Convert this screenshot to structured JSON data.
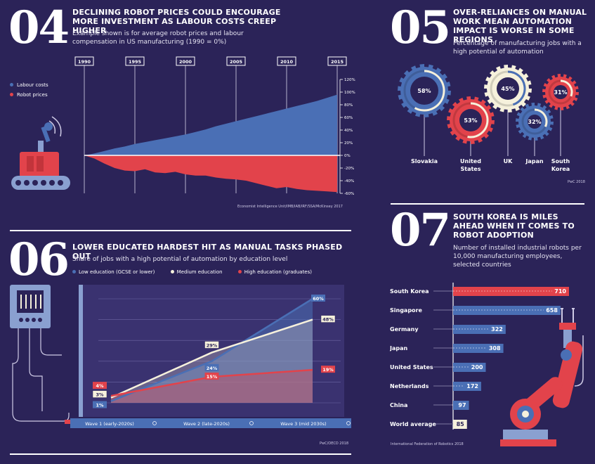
{
  "sections": {
    "s04": {
      "number": "04",
      "title": "DECLINING ROBOT PRICES COULD ENCOURAGE MORE INVESTMENT AS LABOUR COSTS CREEP HIGHER",
      "subtitle": "Example shown is for average robot prices and labour compensation in US manufacturing (1990 = 0%)",
      "source": "Economist Intelligence Unit/IMB/IAB/IRF/SSA/McKinsey 2017",
      "legend": [
        "Labour costs",
        "Robot prices"
      ]
    },
    "s05": {
      "number": "05",
      "title": "OVER-RELIANCES ON MANUAL WORK MEAN AUTOMATION IMPACT IS WORSE IN SOME REGIONS",
      "subtitle": "Percentage of manufacturing jobs with a high potential of automation",
      "source": "PwC 2018"
    },
    "s06": {
      "number": "06",
      "title": "LOWER EDUCATED HARDEST HIT AS MANUAL TASKS PHASED OUT",
      "subtitle": "Share of jobs with a high potential of automation by education level",
      "source": "PwC/OECD 2018",
      "legend": [
        "Low education (GCSE or lower)",
        "Medium education",
        "High education (graduates)"
      ]
    },
    "s07": {
      "number": "07",
      "title": "SOUTH KOREA IS MILES AHEAD WHEN IT COMES TO ROBOT ADOPTION",
      "subtitle": "Number of installed industrial robots per 10,000 manufacturing employees, selected countries",
      "source": "International Federation of Robotics 2018"
    }
  },
  "colors": {
    "background": "#2b2358",
    "blue": "#4a6fb5",
    "red": "#e2434b",
    "cream": "#f6f1dc",
    "grid": "#d9d6ea"
  },
  "chart_data": [
    {
      "id": "robot-prices-vs-labour",
      "type": "area",
      "x_ticks": [
        "1990",
        "1995",
        "2000",
        "2005",
        "2010",
        "2015"
      ],
      "x": [
        1990,
        1991,
        1992,
        1993,
        1994,
        1995,
        1996,
        1997,
        1998,
        1999,
        2000,
        2001,
        2002,
        2003,
        2004,
        2005,
        2006,
        2007,
        2008,
        2009,
        2010,
        2011,
        2012,
        2013,
        2014,
        2015
      ],
      "ylim": [
        -60,
        120
      ],
      "y_ticks": [
        "120%",
        "100%",
        "80%",
        "60%",
        "40%",
        "20%",
        "0%",
        "-20%",
        "-40%",
        "-60%"
      ],
      "series": [
        {
          "name": "Labour costs",
          "values": [
            0,
            3,
            7,
            11,
            14,
            18,
            21,
            24,
            27,
            30,
            33,
            37,
            41,
            46,
            50,
            54,
            58,
            62,
            66,
            70,
            74,
            78,
            82,
            86,
            91,
            96
          ]
        },
        {
          "name": "Robot prices",
          "values": [
            0,
            -5,
            -13,
            -20,
            -24,
            -25,
            -22,
            -27,
            -28,
            -26,
            -30,
            -32,
            -32,
            -35,
            -37,
            -38,
            -40,
            -44,
            -48,
            -52,
            -50,
            -53,
            -55,
            -56,
            -57,
            -58
          ]
        }
      ]
    },
    {
      "id": "automation-by-region",
      "type": "pie",
      "categories": [
        "Slovakia",
        "United States",
        "UK",
        "Japan",
        "South Korea"
      ],
      "values": [
        58,
        53,
        45,
        32,
        31
      ],
      "value_labels": [
        "58%",
        "53%",
        "45%",
        "32%",
        "31%"
      ]
    },
    {
      "id": "automation-by-education",
      "type": "line",
      "categories": [
        "Wave 1 (early-2020s)",
        "Wave 2 (late-2020s)",
        "Wave 3 (mid 2030s)"
      ],
      "ylim": [
        0,
        60
      ],
      "series": [
        {
          "name": "Low education (GCSE or lower)",
          "values": [
            1,
            24,
            60
          ],
          "labels": [
            "1%",
            "24%",
            "60%"
          ]
        },
        {
          "name": "Medium education",
          "values": [
            3,
            29,
            48
          ],
          "labels": [
            "3%",
            "29%",
            "48%"
          ]
        },
        {
          "name": "High education (graduates)",
          "values": [
            4,
            15,
            19
          ],
          "labels": [
            "4%",
            "15%",
            "19%"
          ]
        }
      ]
    },
    {
      "id": "robot-density",
      "type": "bar",
      "categories": [
        "South Korea",
        "Singapore",
        "Germany",
        "Japan",
        "United States",
        "Netherlands",
        "China",
        "World average"
      ],
      "values": [
        710,
        658,
        322,
        308,
        200,
        172,
        97,
        85
      ],
      "value_labels": [
        "710",
        "658",
        "322",
        "308",
        "200",
        "172",
        "97",
        "85"
      ]
    }
  ]
}
